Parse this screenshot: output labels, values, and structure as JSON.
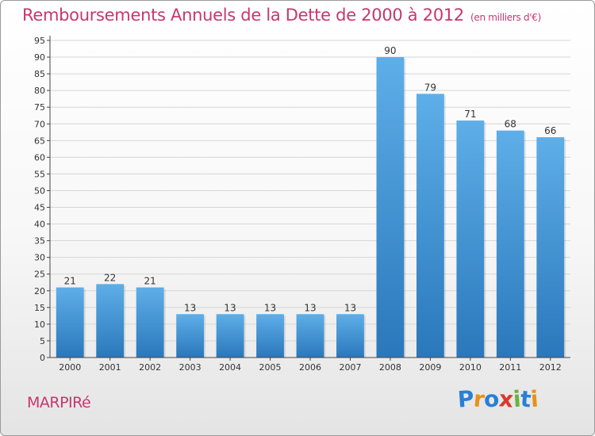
{
  "header": {
    "title": "Remboursements Annuels de la Dette de 2000 à 2012",
    "unit": "(en milliers d'€)"
  },
  "footer": {
    "commune": "MARPIRé",
    "logo_letters": [
      "P",
      "r",
      "o",
      "x",
      "i",
      "t",
      "i"
    ],
    "logo_colors": [
      "#2a7fd4",
      "#e8901c",
      "#2a7fd4",
      "#d93a2b",
      "#6ab23d",
      "#2a7fd4",
      "#e8901c"
    ]
  },
  "colors": {
    "title": "#c8366f",
    "bar_light": "#5eaee8",
    "bar_dark": "#2a78bb",
    "grid": "#d6d6d6"
  },
  "chart_data": {
    "type": "bar",
    "title": "Remboursements Annuels de la Dette de 2000 à 2012",
    "categories": [
      "2000",
      "2001",
      "2002",
      "2003",
      "2004",
      "2005",
      "2006",
      "2007",
      "2008",
      "2009",
      "2010",
      "2011",
      "2012"
    ],
    "values": [
      21,
      22,
      21,
      13,
      13,
      13,
      13,
      13,
      90,
      79,
      71,
      68,
      66
    ],
    "ylim": [
      0,
      95
    ],
    "ytick_step": 5,
    "grid": true
  }
}
